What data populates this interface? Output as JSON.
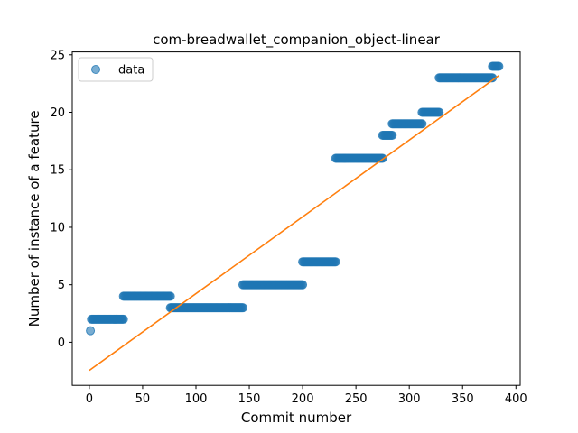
{
  "chart_data": {
    "type": "scatter",
    "title": "com-breadwallet_companion_object-linear",
    "xlabel": "Commit number",
    "ylabel": "Number of instance of a feature",
    "xlim": [
      -16,
      404
    ],
    "ylim": [
      -3.75,
      25.25
    ],
    "xticks": [
      0,
      50,
      100,
      150,
      200,
      250,
      300,
      350,
      400
    ],
    "yticks": [
      0,
      5,
      10,
      15,
      20,
      25
    ],
    "grid": false,
    "legend_position": "top-left",
    "series": [
      {
        "name": "data",
        "kind": "points",
        "color": "#1f77b4",
        "segments": [
          {
            "x_start": 1,
            "x_end": 1,
            "y": 1
          },
          {
            "x_start": 2,
            "x_end": 32,
            "y": 2
          },
          {
            "x_start": 32,
            "x_end": 76,
            "y": 4
          },
          {
            "x_start": 76,
            "x_end": 144,
            "y": 3
          },
          {
            "x_start": 144,
            "x_end": 200,
            "y": 5
          },
          {
            "x_start": 200,
            "x_end": 231,
            "y": 7
          },
          {
            "x_start": 231,
            "x_end": 275,
            "y": 16
          },
          {
            "x_start": 275,
            "x_end": 284,
            "y": 18
          },
          {
            "x_start": 284,
            "x_end": 312,
            "y": 19
          },
          {
            "x_start": 312,
            "x_end": 328,
            "y": 20
          },
          {
            "x_start": 328,
            "x_end": 378,
            "y": 23
          },
          {
            "x_start": 378,
            "x_end": 384,
            "y": 24
          }
        ]
      },
      {
        "name": "",
        "kind": "line",
        "color": "#ff7f0e",
        "x": [
          0,
          384
        ],
        "y": [
          -2.45,
          23.2
        ]
      }
    ]
  }
}
